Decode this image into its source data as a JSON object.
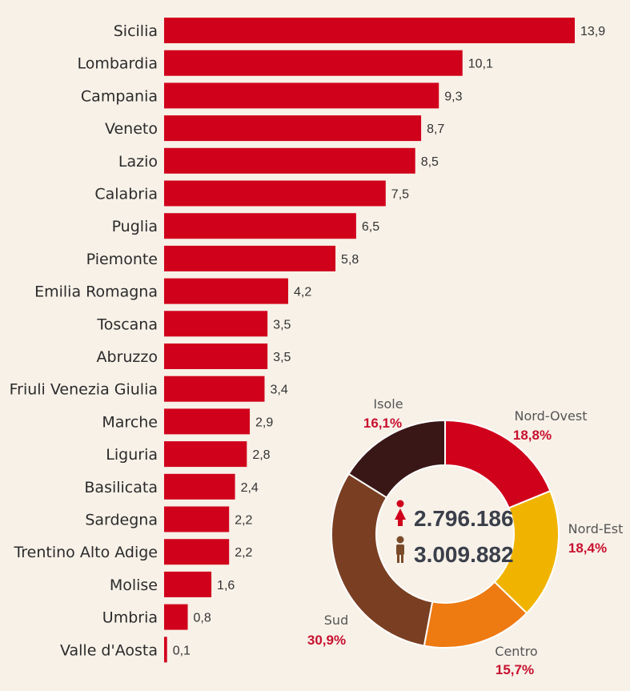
{
  "colors": {
    "bar": "#d0021b",
    "background": "#f7f1e8",
    "female_icon": "#d0021b",
    "male_icon": "#7a4a2a"
  },
  "icons": {
    "female": "female-person-icon",
    "male": "male-person-icon"
  },
  "chart_data": [
    {
      "type": "bar",
      "orientation": "horizontal",
      "categories": [
        "Sicilia",
        "Lombardia",
        "Campania",
        "Veneto",
        "Lazio",
        "Calabria",
        "Puglia",
        "Piemonte",
        "Emilia Romagna",
        "Toscana",
        "Abruzzo",
        "Friuli Venezia Giulia",
        "Marche",
        "Liguria",
        "Basilicata",
        "Sardegna",
        "Trentino Alto Adige",
        "Molise",
        "Umbria",
        "Valle d'Aosta"
      ],
      "values": [
        13.9,
        10.1,
        9.3,
        8.7,
        8.5,
        7.5,
        6.5,
        5.8,
        4.2,
        3.5,
        3.5,
        3.4,
        2.9,
        2.8,
        2.4,
        2.2,
        2.2,
        1.6,
        0.8,
        0.1
      ],
      "value_labels": [
        "13,9",
        "10,1",
        "9,3",
        "8,7",
        "8,5",
        "7,5",
        "6,5",
        "5,8",
        "4,2",
        "3,5",
        "3,5",
        "3,4",
        "2,9",
        "2,8",
        "2,4",
        "2,2",
        "2,2",
        "1,6",
        "0,8",
        "0,1"
      ],
      "xlim": [
        0,
        13.9
      ]
    },
    {
      "type": "pie",
      "style": "donut",
      "slices": [
        {
          "name": "Nord-Ovest",
          "value": 18.8,
          "label": "18,8%",
          "color": "#d0021b"
        },
        {
          "name": "Nord-Est",
          "value": 18.4,
          "label": "18,4%",
          "color": "#f0b400"
        },
        {
          "name": "Centro",
          "value": 15.7,
          "label": "15,7%",
          "color": "#ee7a12"
        },
        {
          "name": "Sud",
          "value": 30.9,
          "label": "30,9%",
          "color": "#7a3f22"
        },
        {
          "name": "Isole",
          "value": 16.1,
          "label": "16,1%",
          "color": "#3a1717"
        }
      ],
      "center": {
        "female_count": "2.796.186",
        "male_count": "3.009.882"
      }
    }
  ]
}
